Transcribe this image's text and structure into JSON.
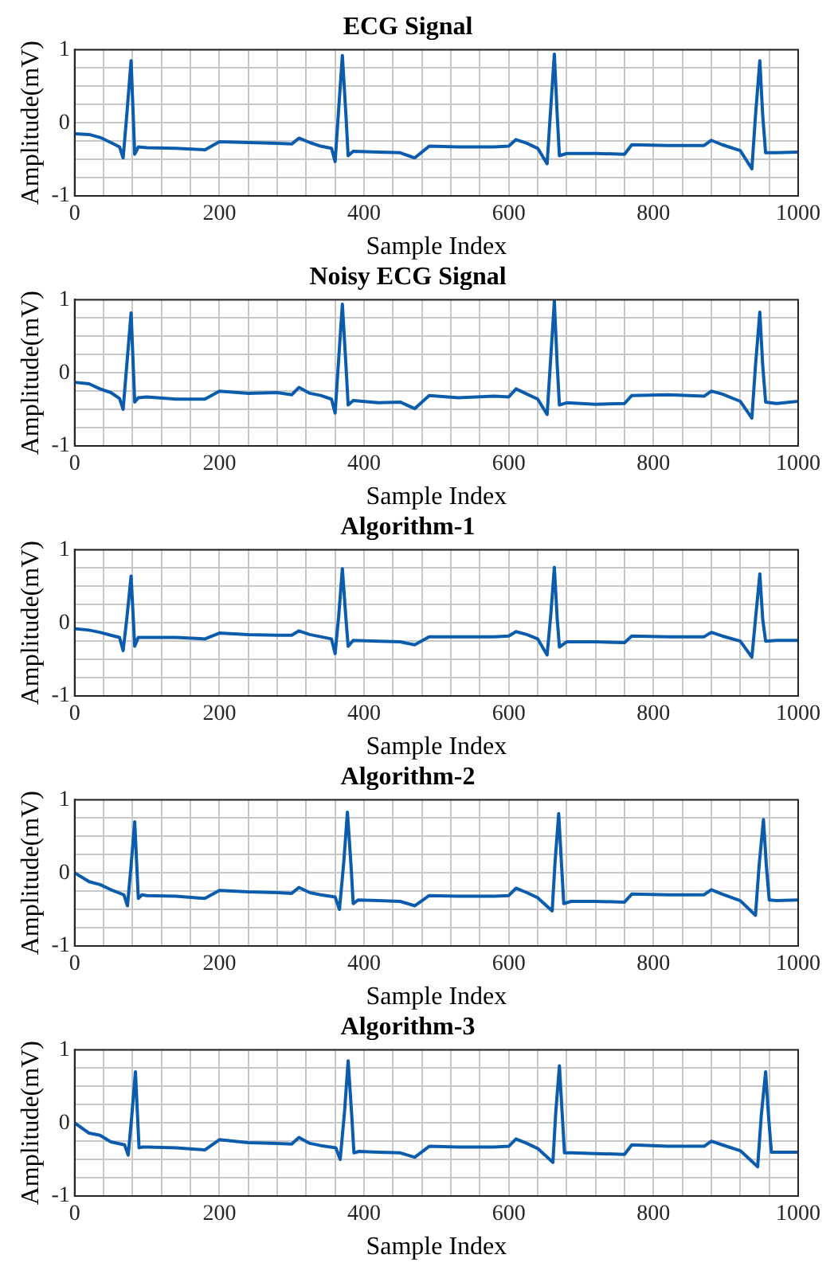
{
  "chart_data": [
    {
      "type": "line",
      "title": "ECG Signal",
      "xlabel": "Sample Index",
      "ylabel": "Amplitude(mV)",
      "xlim": [
        0,
        1000
      ],
      "ylim": [
        -1,
        1
      ],
      "grid": true,
      "legend": false,
      "marker": "none",
      "line_style": "solid",
      "xticks": [
        0,
        {
          "value": 40,
          "label": null
        },
        {
          "value": 80,
          "label": null
        },
        {
          "value": 120,
          "label": null
        },
        {
          "value": 160,
          "label": null
        },
        200,
        {
          "value": 240,
          "label": null
        },
        {
          "value": 280,
          "label": null
        },
        {
          "value": 320,
          "label": null
        },
        {
          "value": 360,
          "label": null
        },
        400,
        {
          "value": 440,
          "label": null
        },
        {
          "value": 480,
          "label": null
        },
        {
          "value": 520,
          "label": null
        },
        {
          "value": 560,
          "label": null
        },
        600,
        {
          "value": 640,
          "label": null
        },
        {
          "value": 680,
          "label": null
        },
        {
          "value": 720,
          "label": null
        },
        {
          "value": 760,
          "label": null
        },
        800,
        {
          "value": 840,
          "label": null
        },
        {
          "value": 880,
          "label": null
        },
        {
          "value": 920,
          "label": null
        },
        {
          "value": 960,
          "label": null
        },
        1000
      ],
      "yticks": [
        -1,
        {
          "value": -0.75,
          "label": null
        },
        {
          "value": -0.5,
          "label": null
        },
        {
          "value": -0.25,
          "label": null
        },
        0,
        {
          "value": 0.25,
          "label": null
        },
        {
          "value": 0.5,
          "label": null
        },
        {
          "value": 0.75,
          "label": null
        },
        1
      ],
      "series": [
        {
          "color": "#0b5cad",
          "x": [
            0,
            20,
            35,
            50,
            62,
            67,
            72,
            78,
            83,
            88,
            100,
            140,
            180,
            200,
            240,
            280,
            300,
            310,
            325,
            340,
            355,
            360,
            365,
            370,
            375,
            378,
            385,
            420,
            450,
            470,
            490,
            530,
            580,
            600,
            610,
            625,
            640,
            653,
            658,
            663,
            667,
            670,
            680,
            720,
            760,
            770,
            820,
            870,
            880,
            895,
            920,
            936,
            941,
            947,
            951,
            955,
            970,
            1000
          ],
          "values": [
            -0.15,
            -0.16,
            -0.2,
            -0.27,
            -0.33,
            -0.48,
            0.1,
            0.85,
            -0.43,
            -0.33,
            -0.34,
            -0.35,
            -0.37,
            -0.26,
            -0.27,
            -0.28,
            -0.29,
            -0.21,
            -0.27,
            -0.32,
            -0.35,
            -0.53,
            0.2,
            0.92,
            0.1,
            -0.45,
            -0.39,
            -0.4,
            -0.41,
            -0.48,
            -0.32,
            -0.33,
            -0.33,
            -0.32,
            -0.23,
            -0.28,
            -0.35,
            -0.56,
            0.2,
            0.94,
            0.1,
            -0.45,
            -0.42,
            -0.42,
            -0.43,
            -0.3,
            -0.31,
            -0.31,
            -0.24,
            -0.3,
            -0.38,
            -0.63,
            0.1,
            0.85,
            0.1,
            -0.41,
            -0.41,
            -0.4
          ]
        }
      ]
    },
    {
      "type": "line",
      "title": "Noisy ECG Signal",
      "xlabel": "Sample Index",
      "ylabel": "Amplitude(mV)",
      "xlim": [
        0,
        1000
      ],
      "ylim": [
        -1,
        1
      ],
      "grid": true,
      "legend": false,
      "marker": "none",
      "line_style": "solid",
      "xticks": [
        0,
        {
          "value": 40,
          "label": null
        },
        {
          "value": 80,
          "label": null
        },
        {
          "value": 120,
          "label": null
        },
        {
          "value": 160,
          "label": null
        },
        200,
        {
          "value": 240,
          "label": null
        },
        {
          "value": 280,
          "label": null
        },
        {
          "value": 320,
          "label": null
        },
        {
          "value": 360,
          "label": null
        },
        400,
        {
          "value": 440,
          "label": null
        },
        {
          "value": 480,
          "label": null
        },
        {
          "value": 520,
          "label": null
        },
        {
          "value": 560,
          "label": null
        },
        600,
        {
          "value": 640,
          "label": null
        },
        {
          "value": 680,
          "label": null
        },
        {
          "value": 720,
          "label": null
        },
        {
          "value": 760,
          "label": null
        },
        800,
        {
          "value": 840,
          "label": null
        },
        {
          "value": 880,
          "label": null
        },
        {
          "value": 920,
          "label": null
        },
        {
          "value": 960,
          "label": null
        },
        1000
      ],
      "yticks": [
        -1,
        {
          "value": -0.75,
          "label": null
        },
        {
          "value": -0.5,
          "label": null
        },
        {
          "value": -0.25,
          "label": null
        },
        0,
        {
          "value": 0.25,
          "label": null
        },
        {
          "value": 0.5,
          "label": null
        },
        {
          "value": 0.75,
          "label": null
        },
        1
      ],
      "series": [
        {
          "color": "#0b5cad",
          "x": [
            0,
            20,
            35,
            50,
            62,
            67,
            72,
            78,
            83,
            88,
            100,
            140,
            180,
            200,
            240,
            280,
            300,
            310,
            325,
            340,
            355,
            360,
            365,
            370,
            375,
            378,
            385,
            420,
            450,
            470,
            490,
            530,
            580,
            600,
            610,
            625,
            640,
            653,
            658,
            663,
            667,
            670,
            680,
            720,
            760,
            770,
            820,
            870,
            880,
            895,
            920,
            936,
            941,
            947,
            951,
            955,
            970,
            1000
          ],
          "values": [
            -0.13,
            -0.15,
            -0.22,
            -0.27,
            -0.35,
            -0.5,
            0.1,
            0.82,
            -0.4,
            -0.34,
            -0.33,
            -0.36,
            -0.36,
            -0.25,
            -0.28,
            -0.27,
            -0.3,
            -0.2,
            -0.28,
            -0.31,
            -0.36,
            -0.55,
            0.2,
            0.94,
            0.1,
            -0.44,
            -0.38,
            -0.41,
            -0.4,
            -0.49,
            -0.31,
            -0.34,
            -0.32,
            -0.33,
            -0.22,
            -0.29,
            -0.36,
            -0.57,
            0.2,
            0.98,
            0.1,
            -0.44,
            -0.41,
            -0.43,
            -0.42,
            -0.31,
            -0.3,
            -0.32,
            -0.25,
            -0.29,
            -0.39,
            -0.62,
            0.1,
            0.83,
            0.1,
            -0.4,
            -0.42,
            -0.39
          ]
        }
      ]
    },
    {
      "type": "line",
      "title": "Algorithm-1",
      "xlabel": "Sample Index",
      "ylabel": "Amplitude(mV)",
      "xlim": [
        0,
        1000
      ],
      "ylim": [
        -1,
        1
      ],
      "grid": true,
      "legend": false,
      "marker": "none",
      "line_style": "solid",
      "xticks": [
        0,
        {
          "value": 40,
          "label": null
        },
        {
          "value": 80,
          "label": null
        },
        {
          "value": 120,
          "label": null
        },
        {
          "value": 160,
          "label": null
        },
        200,
        {
          "value": 240,
          "label": null
        },
        {
          "value": 280,
          "label": null
        },
        {
          "value": 320,
          "label": null
        },
        {
          "value": 360,
          "label": null
        },
        400,
        {
          "value": 440,
          "label": null
        },
        {
          "value": 480,
          "label": null
        },
        {
          "value": 520,
          "label": null
        },
        {
          "value": 560,
          "label": null
        },
        600,
        {
          "value": 640,
          "label": null
        },
        {
          "value": 680,
          "label": null
        },
        {
          "value": 720,
          "label": null
        },
        {
          "value": 760,
          "label": null
        },
        800,
        {
          "value": 840,
          "label": null
        },
        {
          "value": 880,
          "label": null
        },
        {
          "value": 920,
          "label": null
        },
        {
          "value": 960,
          "label": null
        },
        1000
      ],
      "yticks": [
        -1,
        {
          "value": -0.75,
          "label": null
        },
        {
          "value": -0.5,
          "label": null
        },
        {
          "value": -0.25,
          "label": null
        },
        0,
        {
          "value": 0.25,
          "label": null
        },
        {
          "value": 0.5,
          "label": null
        },
        {
          "value": 0.75,
          "label": null
        },
        1
      ],
      "series": [
        {
          "color": "#0b5cad",
          "x": [
            0,
            20,
            35,
            50,
            62,
            67,
            72,
            78,
            83,
            88,
            100,
            140,
            180,
            200,
            240,
            280,
            300,
            310,
            325,
            340,
            355,
            360,
            365,
            370,
            375,
            378,
            385,
            420,
            450,
            470,
            490,
            530,
            580,
            600,
            610,
            625,
            640,
            653,
            658,
            663,
            667,
            670,
            680,
            720,
            760,
            770,
            820,
            870,
            880,
            895,
            920,
            936,
            941,
            947,
            951,
            955,
            970,
            1000
          ],
          "values": [
            -0.08,
            -0.1,
            -0.13,
            -0.17,
            -0.2,
            -0.38,
            0.05,
            0.64,
            -0.32,
            -0.2,
            -0.2,
            -0.2,
            -0.22,
            -0.14,
            -0.16,
            -0.17,
            -0.17,
            -0.11,
            -0.16,
            -0.19,
            -0.22,
            -0.42,
            0.1,
            0.74,
            0.05,
            -0.32,
            -0.24,
            -0.25,
            -0.26,
            -0.3,
            -0.19,
            -0.19,
            -0.19,
            -0.18,
            -0.12,
            -0.16,
            -0.22,
            -0.44,
            0.1,
            0.76,
            0.05,
            -0.33,
            -0.26,
            -0.26,
            -0.27,
            -0.18,
            -0.19,
            -0.19,
            -0.13,
            -0.18,
            -0.25,
            -0.47,
            0.05,
            0.67,
            0.05,
            -0.25,
            -0.24,
            -0.24
          ]
        }
      ]
    },
    {
      "type": "line",
      "title": "Algorithm-2",
      "xlabel": "Sample Index",
      "ylabel": "Amplitude(mV)",
      "xlim": [
        0,
        1000
      ],
      "ylim": [
        -1,
        1
      ],
      "grid": true,
      "legend": false,
      "marker": "none",
      "line_style": "solid",
      "xticks": [
        0,
        {
          "value": 40,
          "label": null
        },
        {
          "value": 80,
          "label": null
        },
        {
          "value": 120,
          "label": null
        },
        {
          "value": 160,
          "label": null
        },
        200,
        {
          "value": 240,
          "label": null
        },
        {
          "value": 280,
          "label": null
        },
        {
          "value": 320,
          "label": null
        },
        {
          "value": 360,
          "label": null
        },
        400,
        {
          "value": 440,
          "label": null
        },
        {
          "value": 480,
          "label": null
        },
        {
          "value": 520,
          "label": null
        },
        {
          "value": 560,
          "label": null
        },
        600,
        {
          "value": 640,
          "label": null
        },
        {
          "value": 680,
          "label": null
        },
        {
          "value": 720,
          "label": null
        },
        {
          "value": 760,
          "label": null
        },
        800,
        {
          "value": 840,
          "label": null
        },
        {
          "value": 880,
          "label": null
        },
        {
          "value": 920,
          "label": null
        },
        {
          "value": 960,
          "label": null
        },
        1000
      ],
      "yticks": [
        -1,
        {
          "value": -0.75,
          "label": null
        },
        {
          "value": -0.5,
          "label": null
        },
        {
          "value": -0.25,
          "label": null
        },
        0,
        {
          "value": 0.25,
          "label": null
        },
        {
          "value": 0.5,
          "label": null
        },
        {
          "value": 0.75,
          "label": null
        },
        1
      ],
      "series": [
        {
          "color": "#0b5cad",
          "x": [
            0,
            20,
            35,
            50,
            68,
            73,
            78,
            83,
            88,
            93,
            100,
            140,
            180,
            200,
            240,
            280,
            300,
            310,
            325,
            340,
            360,
            366,
            372,
            377,
            382,
            385,
            392,
            420,
            450,
            470,
            490,
            530,
            580,
            600,
            610,
            625,
            640,
            660,
            664,
            669,
            673,
            676,
            686,
            720,
            760,
            770,
            820,
            870,
            880,
            895,
            920,
            941,
            946,
            952,
            956,
            960,
            970,
            1000
          ],
          "values": [
            0,
            -0.12,
            -0.16,
            -0.23,
            -0.3,
            -0.45,
            0.1,
            0.7,
            -0.35,
            -0.3,
            -0.31,
            -0.32,
            -0.35,
            -0.24,
            -0.26,
            -0.27,
            -0.28,
            -0.2,
            -0.27,
            -0.3,
            -0.33,
            -0.5,
            0.15,
            0.83,
            0.1,
            -0.42,
            -0.37,
            -0.38,
            -0.39,
            -0.45,
            -0.31,
            -0.32,
            -0.32,
            -0.31,
            -0.21,
            -0.27,
            -0.34,
            -0.52,
            0.15,
            0.81,
            0.1,
            -0.42,
            -0.39,
            -0.39,
            -0.4,
            -0.29,
            -0.3,
            -0.3,
            -0.23,
            -0.29,
            -0.38,
            -0.58,
            0.1,
            0.73,
            0.1,
            -0.37,
            -0.38,
            -0.37
          ]
        }
      ]
    },
    {
      "type": "line",
      "title": "Algorithm-3",
      "xlabel": "Sample Index",
      "ylabel": "Amplitude(mV)",
      "xlim": [
        0,
        1000
      ],
      "ylim": [
        -1,
        1
      ],
      "grid": true,
      "legend": false,
      "marker": "none",
      "line_style": "solid",
      "xticks": [
        0,
        {
          "value": 40,
          "label": null
        },
        {
          "value": 80,
          "label": null
        },
        {
          "value": 120,
          "label": null
        },
        {
          "value": 160,
          "label": null
        },
        200,
        {
          "value": 240,
          "label": null
        },
        {
          "value": 280,
          "label": null
        },
        {
          "value": 320,
          "label": null
        },
        {
          "value": 360,
          "label": null
        },
        400,
        {
          "value": 440,
          "label": null
        },
        {
          "value": 480,
          "label": null
        },
        {
          "value": 520,
          "label": null
        },
        {
          "value": 560,
          "label": null
        },
        600,
        {
          "value": 640,
          "label": null
        },
        {
          "value": 680,
          "label": null
        },
        {
          "value": 720,
          "label": null
        },
        {
          "value": 760,
          "label": null
        },
        800,
        {
          "value": 840,
          "label": null
        },
        {
          "value": 880,
          "label": null
        },
        {
          "value": 920,
          "label": null
        },
        {
          "value": 960,
          "label": null
        },
        1000
      ],
      "yticks": [
        -1,
        {
          "value": -0.75,
          "label": null
        },
        {
          "value": -0.5,
          "label": null
        },
        {
          "value": -0.25,
          "label": null
        },
        0,
        {
          "value": 0.25,
          "label": null
        },
        {
          "value": 0.5,
          "label": null
        },
        {
          "value": 0.75,
          "label": null
        },
        1
      ],
      "series": [
        {
          "color": "#0b5cad",
          "x": [
            0,
            20,
            35,
            50,
            69,
            74,
            79,
            84,
            89,
            94,
            100,
            140,
            180,
            200,
            240,
            280,
            300,
            310,
            325,
            340,
            361,
            367,
            373,
            378,
            383,
            386,
            393,
            420,
            450,
            470,
            490,
            530,
            580,
            600,
            610,
            625,
            640,
            661,
            665,
            670,
            674,
            677,
            687,
            720,
            760,
            770,
            820,
            870,
            880,
            895,
            920,
            944,
            949,
            955,
            959,
            963,
            970,
            1000
          ],
          "values": [
            0,
            -0.14,
            -0.17,
            -0.26,
            -0.3,
            -0.44,
            0.1,
            0.7,
            -0.34,
            -0.33,
            -0.33,
            -0.34,
            -0.37,
            -0.23,
            -0.27,
            -0.28,
            -0.29,
            -0.2,
            -0.28,
            -0.31,
            -0.34,
            -0.5,
            0.15,
            0.85,
            0.1,
            -0.41,
            -0.39,
            -0.4,
            -0.41,
            -0.47,
            -0.32,
            -0.33,
            -0.33,
            -0.32,
            -0.22,
            -0.28,
            -0.35,
            -0.54,
            0.15,
            0.78,
            0.1,
            -0.41,
            -0.41,
            -0.42,
            -0.43,
            -0.3,
            -0.32,
            -0.32,
            -0.25,
            -0.3,
            -0.38,
            -0.6,
            0.1,
            0.7,
            0.1,
            -0.4,
            -0.4,
            -0.4
          ]
        }
      ]
    }
  ]
}
